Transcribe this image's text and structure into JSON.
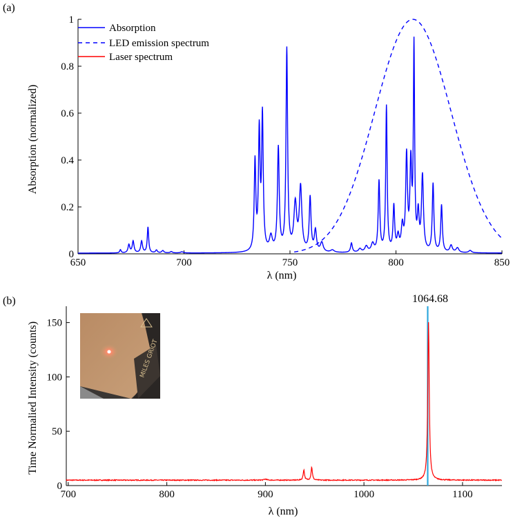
{
  "chart_data": [
    {
      "panel_label": "(a)",
      "type": "line",
      "xlabel": "λ (nm)",
      "ylabel": "Absorption (normalized)",
      "xlim": [
        650,
        850
      ],
      "ylim": [
        0,
        1.0
      ],
      "x_ticks": [
        650,
        700,
        750,
        800,
        850
      ],
      "y_ticks": [
        0,
        0.2,
        0.4,
        0.6,
        0.8,
        1
      ],
      "x_tick_labels": [
        "650",
        "700",
        "750",
        "800",
        "850"
      ],
      "y_tick_labels": [
        "0",
        "0.2",
        "0.4",
        "0.6",
        "0.8",
        "1"
      ],
      "legend_position": "top-left",
      "grid": false,
      "series": [
        {
          "name": "Absorption",
          "color": "#0000ff",
          "style": "solid",
          "baseline": 0.003,
          "peaks": [
            [
              670,
              0.014,
              0.4
            ],
            [
              674,
              0.035,
              0.5
            ],
            [
              676,
              0.05,
              0.5
            ],
            [
              680,
              0.05,
              0.5
            ],
            [
              683,
              0.11,
              0.4
            ],
            [
              687,
              0.012,
              0.5
            ],
            [
              690,
              0.01,
              0.6
            ],
            [
              694,
              0.006,
              0.6
            ],
            [
              699,
              0.005,
              0.8
            ],
            [
              733.5,
              0.38,
              0.45
            ],
            [
              735.5,
              0.5,
              0.45
            ],
            [
              737,
              0.57,
              0.45
            ],
            [
              741,
              0.06,
              0.8
            ],
            [
              744.5,
              0.44,
              0.5
            ],
            [
              748.5,
              0.86,
              0.45
            ],
            [
              752.5,
              0.2,
              0.8
            ],
            [
              755,
              0.27,
              0.7
            ],
            [
              759.5,
              0.23,
              0.5
            ],
            [
              762,
              0.09,
              0.6
            ],
            [
              765,
              0.04,
              0.8
            ],
            [
              770,
              0.01,
              1.0
            ],
            [
              779,
              0.04,
              0.5
            ],
            [
              783,
              0.015,
              0.8
            ],
            [
              786,
              0.025,
              0.8
            ],
            [
              789,
              0.035,
              0.8
            ],
            [
              792,
              0.3,
              0.45
            ],
            [
              795.5,
              0.62,
              0.4
            ],
            [
              799,
              0.19,
              0.45
            ],
            [
              801,
              0.06,
              0.6
            ],
            [
              803,
              0.1,
              0.6
            ],
            [
              805,
              0.4,
              0.5
            ],
            [
              807,
              0.36,
              0.5
            ],
            [
              808.5,
              0.86,
              0.35
            ],
            [
              810.5,
              0.15,
              0.5
            ],
            [
              812.5,
              0.32,
              0.55
            ],
            [
              817.5,
              0.29,
              0.45
            ],
            [
              821.5,
              0.2,
              0.45
            ],
            [
              826,
              0.03,
              0.7
            ],
            [
              829,
              0.02,
              0.8
            ],
            [
              835,
              0.01,
              0.8
            ]
          ]
        },
        {
          "name": "LED emission spectrum",
          "color": "#0000ff",
          "style": "dashed",
          "center": 808,
          "sigma": 18,
          "peak": 1.0,
          "x_range": [
            752,
            850
          ]
        },
        {
          "name": "Laser spectrum",
          "color": "#ff0000",
          "style": "solid",
          "points": []
        }
      ]
    },
    {
      "panel_label": "(b)",
      "type": "line",
      "xlabel": "λ (nm)",
      "ylabel": "Time Normalied Intensity (counts)",
      "xlim": [
        698,
        1140
      ],
      "ylim": [
        0,
        165
      ],
      "x_ticks": [
        700,
        800,
        900,
        1000,
        1100
      ],
      "y_ticks": [
        0,
        50,
        100,
        150
      ],
      "x_tick_labels": [
        "700",
        "800",
        "900",
        "1000",
        "1100"
      ],
      "y_tick_labels": [
        "0",
        "50",
        "100",
        "150"
      ],
      "grid": false,
      "series": [
        {
          "name": "Laser spectrum",
          "color": "#ff0000",
          "baseline": 5,
          "peaks": [
            [
              900,
              1.0,
              1.5
            ],
            [
              939,
              9.5,
              0.8
            ],
            [
              947,
              12,
              0.8
            ],
            [
              1065.5,
              145,
              0.9
            ]
          ]
        }
      ],
      "marker_line": {
        "x": 1064.68,
        "color": "#2fa8dd"
      },
      "annotation": "1064.68",
      "inset_photo": {
        "description_words": "photo"
      }
    }
  ]
}
